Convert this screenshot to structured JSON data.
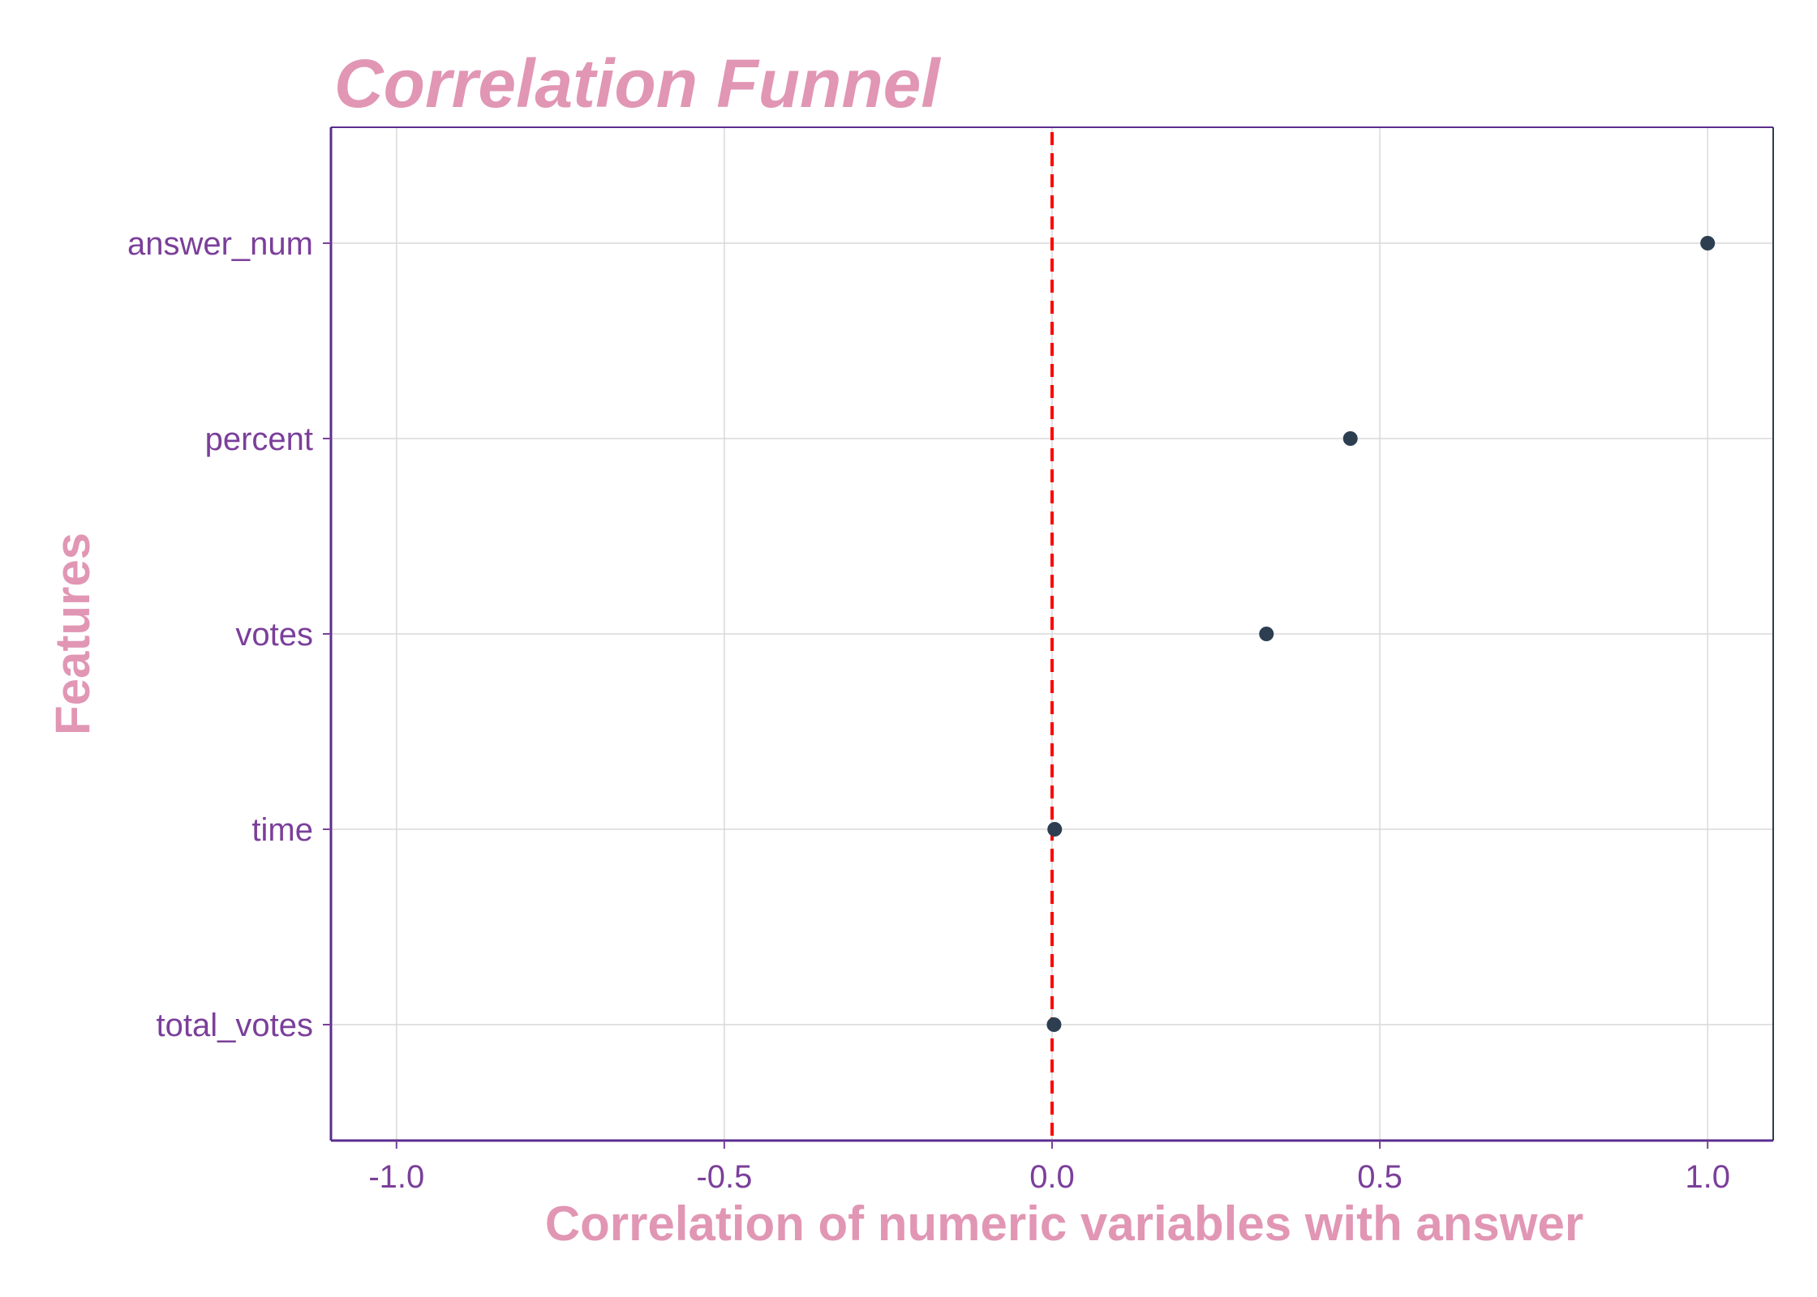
{
  "chart_data": {
    "type": "scatter",
    "title": "Correlation Funnel",
    "xlabel": "Correlation of numeric variables with answer",
    "ylabel": "Features",
    "xlim": [
      -1.1,
      1.1
    ],
    "xticks": [
      -1.0,
      -0.5,
      0.0,
      0.5,
      1.0
    ],
    "xtick_labels": [
      "-1.0",
      "-0.5",
      "0.0",
      "0.5",
      "1.0"
    ],
    "categories": [
      "total_votes",
      "time",
      "votes",
      "percent",
      "answer_num"
    ],
    "values": [
      0.003,
      0.004,
      0.327,
      0.455,
      1.0
    ],
    "reference_line": {
      "x": 0.0,
      "style": "dashed",
      "color": "#ff0000"
    },
    "grid": true,
    "legend": "none"
  },
  "colors": {
    "title": "#e196b4",
    "axis_title": "#e196b4",
    "tick_label": "#7b3f9a",
    "point": "#2c3e50",
    "grid": "#d9d9d9",
    "frame": "#5b2d8e",
    "frame_right": "#2c3e50",
    "reference_line": "#ff0000"
  }
}
